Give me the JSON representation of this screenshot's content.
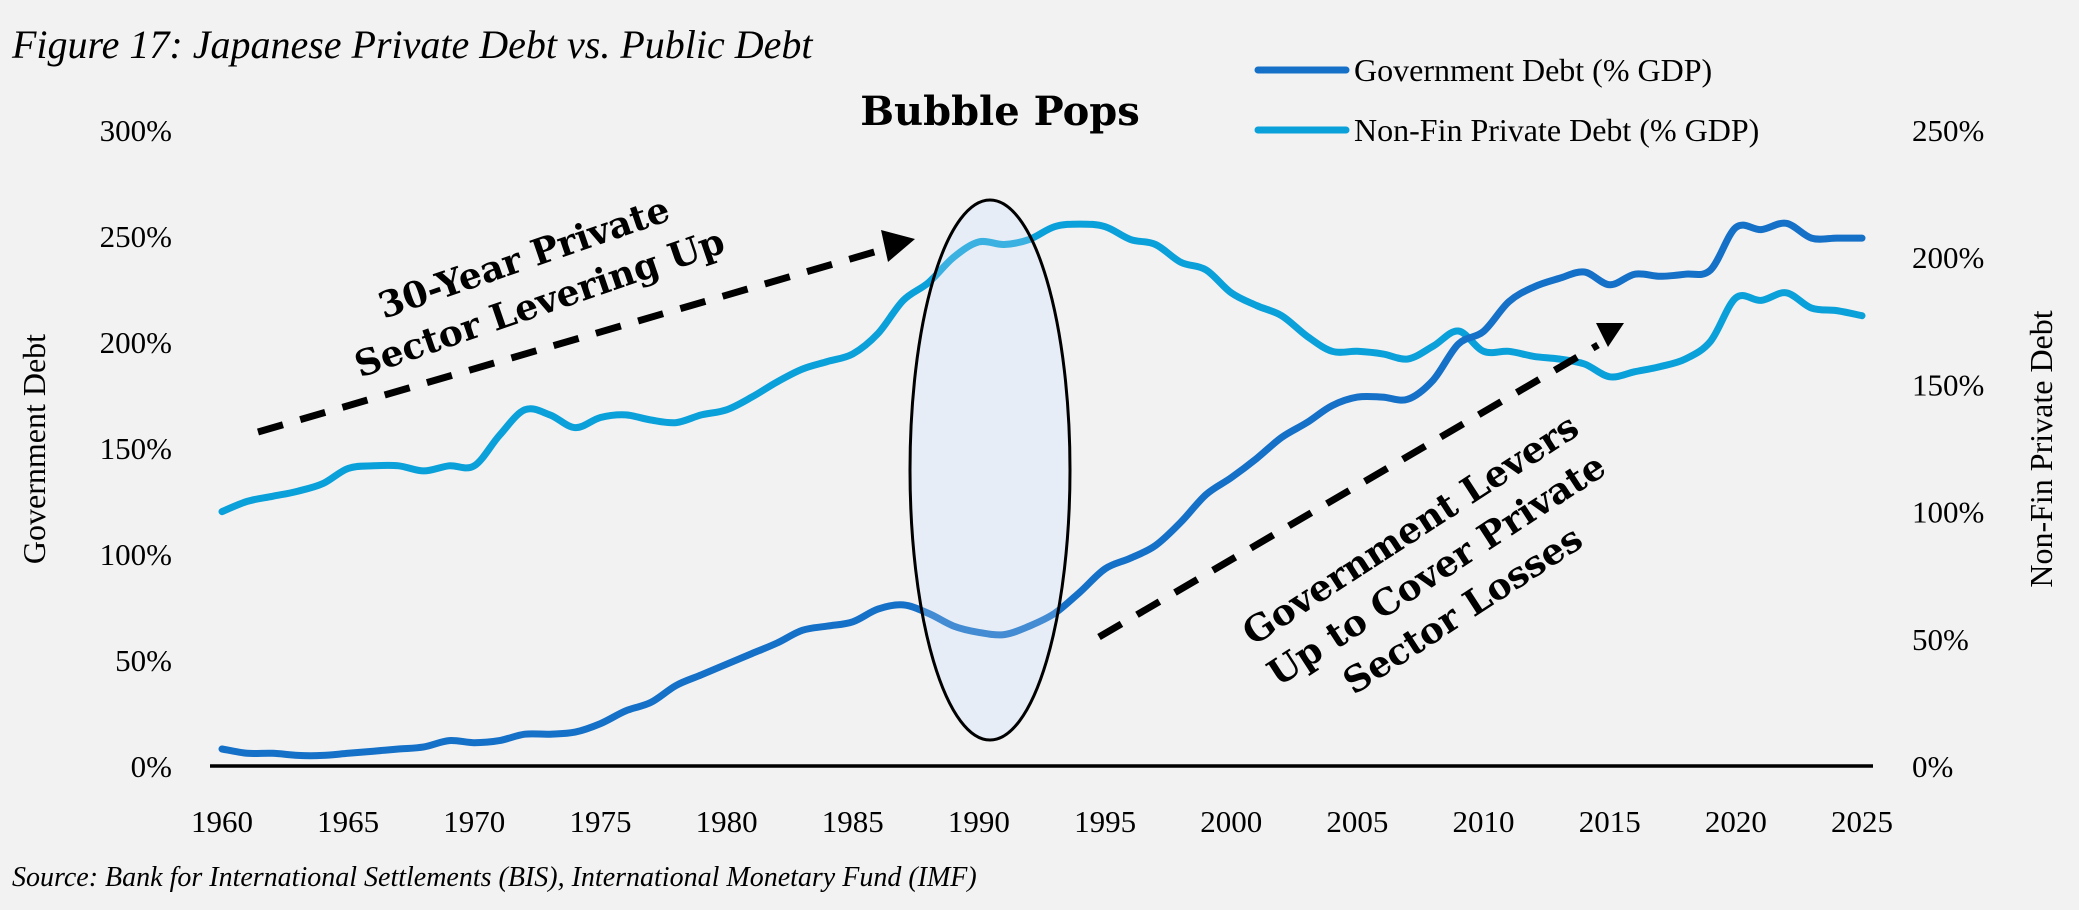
{
  "chart_data": {
    "type": "line",
    "title": "Figure 17: Japanese Private Debt vs. Public Debt",
    "source": "Source: Bank for International Settlements (BIS), International Monetary Fund (IMF)",
    "xlabel": "",
    "ylabel_left": "Government Debt",
    "ylabel_right": "Non-Fin Private Debt",
    "xlim": [
      1960,
      2025
    ],
    "ylim_left": [
      0,
      300
    ],
    "ylim_right": [
      0,
      250
    ],
    "grid": false,
    "legend_position": "top-right",
    "x_ticks": [
      "1960",
      "1965",
      "1970",
      "1975",
      "1980",
      "1985",
      "1990",
      "1995",
      "2000",
      "2005",
      "2010",
      "2015",
      "2020",
      "2025"
    ],
    "y_ticks_left": [
      "0%",
      "50%",
      "100%",
      "150%",
      "200%",
      "250%",
      "300%"
    ],
    "y_ticks_right": [
      "0%",
      "50%",
      "100%",
      "150%",
      "200%",
      "250%"
    ],
    "x": [
      1960,
      1961,
      1962,
      1963,
      1964,
      1965,
      1966,
      1967,
      1968,
      1969,
      1970,
      1971,
      1972,
      1973,
      1974,
      1975,
      1976,
      1977,
      1978,
      1979,
      1980,
      1981,
      1982,
      1983,
      1984,
      1985,
      1986,
      1987,
      1988,
      1989,
      1990,
      1991,
      1992,
      1993,
      1994,
      1995,
      1996,
      1997,
      1998,
      1999,
      2000,
      2001,
      2002,
      2003,
      2004,
      2005,
      2006,
      2007,
      2008,
      2009,
      2010,
      2011,
      2012,
      2013,
      2014,
      2015,
      2016,
      2017,
      2018,
      2019,
      2020,
      2021,
      2022,
      2023,
      2024,
      2025
    ],
    "series": [
      {
        "name": "Government Debt (% GDP)",
        "axis": "left",
        "color": "#1570c8",
        "values": [
          8,
          6,
          6,
          5,
          5,
          6,
          7,
          8,
          9,
          12,
          11,
          12,
          15,
          15,
          16,
          20,
          26,
          30,
          38,
          43,
          48,
          53,
          58,
          64,
          66,
          68,
          74,
          76,
          72,
          66,
          63,
          62,
          66,
          72,
          82,
          93,
          98,
          104,
          115,
          128,
          136,
          145,
          155,
          162,
          170,
          174,
          174,
          173,
          182,
          199,
          205,
          219,
          226,
          230,
          233,
          227,
          232,
          231,
          232,
          234,
          254,
          253,
          256,
          249,
          249,
          249
        ]
      },
      {
        "name": "Non-Fin Private Debt (% GDP)",
        "axis": "right",
        "color": "#0aa0da",
        "values": [
          100,
          104,
          106,
          108,
          111,
          117,
          118,
          118,
          116,
          118,
          118,
          130,
          140,
          138,
          133,
          137,
          138,
          136,
          135,
          138,
          140,
          145,
          151,
          156,
          159,
          162,
          170,
          183,
          190,
          200,
          206,
          205,
          207,
          212,
          213,
          212,
          207,
          205,
          198,
          195,
          186,
          181,
          177,
          169,
          163,
          163,
          162,
          160,
          165,
          171,
          163,
          163,
          161,
          160,
          158,
          153,
          155,
          157,
          160,
          167,
          184,
          183,
          186,
          180,
          179,
          177
        ]
      }
    ],
    "annotations": [
      {
        "text_lines": [
          "30-Year Private",
          "Sector Levering Up"
        ],
        "arrow": "dashed",
        "direction": "up-right"
      },
      {
        "text_lines": [
          "Bubble Pops"
        ],
        "shape": "ellipse",
        "around_year": 1990
      },
      {
        "text_lines": [
          "Government Levers",
          "Up to Cover Private",
          "Sector Losses"
        ],
        "arrow": "dashed",
        "direction": "up-right"
      }
    ]
  }
}
